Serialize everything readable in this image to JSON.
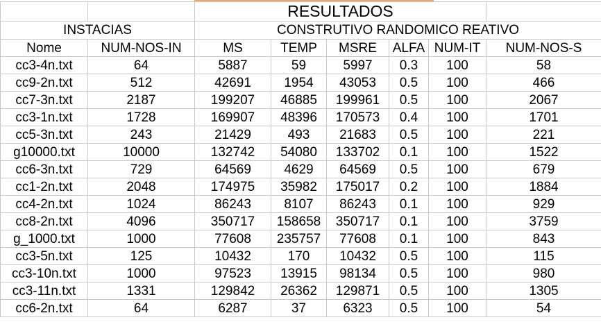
{
  "title": "RESULTADOS",
  "groups": {
    "instances": "INSTACIAS",
    "method": "CONSTRUTIVO RANDOMICO REATIVO"
  },
  "columns": [
    "Nome",
    "NUM-NOS-IN",
    "MS",
    "TEMP",
    "MSRE",
    "ALFA",
    "NUM-IT",
    "NUM-NOS-S"
  ],
  "rows": [
    [
      "cc3-4n.txt",
      "64",
      "5887",
      "59",
      "5997",
      "0.3",
      "100",
      "58"
    ],
    [
      "cc9-2n.txt",
      "512",
      "42691",
      "1954",
      "43053",
      "0.5",
      "100",
      "466"
    ],
    [
      "cc7-3n.txt",
      "2187",
      "199207",
      "46885",
      "199961",
      "0.5",
      "100",
      "2067"
    ],
    [
      "cc3-1n.txt",
      "1728",
      "169907",
      "48396",
      "170573",
      "0.4",
      "100",
      "1701"
    ],
    [
      "cc5-3n.txt",
      "243",
      "21429",
      "493",
      "21683",
      "0.5",
      "100",
      "221"
    ],
    [
      "g10000.txt",
      "10000",
      "132742",
      "54080",
      "133702",
      "0.1",
      "100",
      "1522"
    ],
    [
      "cc6-3n.txt",
      "729",
      "64569",
      "4629",
      "64569",
      "0.5",
      "100",
      "679"
    ],
    [
      "cc1-2n.txt",
      "2048",
      "174975",
      "35982",
      "175017",
      "0.2",
      "100",
      "1884"
    ],
    [
      "cc4-2n.txt",
      "1024",
      "86243",
      "8107",
      "86243",
      "0.1",
      "100",
      "929"
    ],
    [
      "cc8-2n.txt",
      "4096",
      "350717",
      "158658",
      "350717",
      "0.1",
      "100",
      "3759"
    ],
    [
      "g_1000.txt",
      "1000",
      "77608",
      "235757",
      "77608",
      "0.1",
      "100",
      "843"
    ],
    [
      "cc3-5n.txt",
      "125",
      "10432",
      "170",
      "10432",
      "0.5",
      "100",
      "115"
    ],
    [
      "cc3-10n.txt",
      "1000",
      "97523",
      "13915",
      "98134",
      "0.5",
      "100",
      "980"
    ],
    [
      "cc3-11n.txt",
      "1331",
      "129842",
      "26362",
      "129871",
      "0.5",
      "100",
      "1305"
    ],
    [
      "cc6-2n.txt",
      "64",
      "6287",
      "37",
      "6323",
      "0.5",
      "100",
      "54"
    ]
  ]
}
